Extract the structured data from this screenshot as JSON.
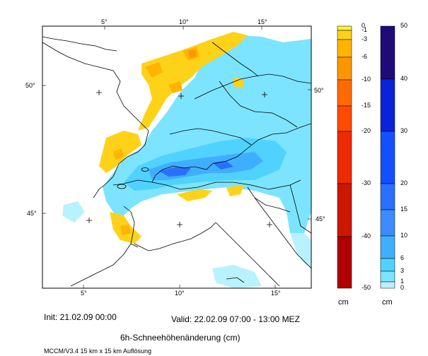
{
  "map": {
    "top_lon_labels": [
      "5°",
      "10°",
      "15°"
    ],
    "bottom_lon_labels": [
      "5°",
      "10°",
      "15°"
    ],
    "left_lat_labels": [
      "50°",
      "45°"
    ],
    "right_lat_labels": [
      "50°",
      "45°"
    ]
  },
  "negative_scale": {
    "labels": [
      "0",
      "-1",
      "-3",
      "-6",
      "-10",
      "-15",
      "-20",
      "-30",
      "-40",
      "-50"
    ],
    "colors": [
      "#ffee44",
      "#ffd21a",
      "#ffb400",
      "#ff9600",
      "#ff6a00",
      "#ff4a00",
      "#ee2a00",
      "#cc1800",
      "#b00000"
    ],
    "unit": "cm"
  },
  "positive_scale": {
    "labels": [
      "50",
      "40",
      "30",
      "20",
      "15",
      "10",
      "6",
      "3",
      "1",
      "0"
    ],
    "colors": [
      "#1e0a78",
      "#0a22d8",
      "#1250ff",
      "#2a70ff",
      "#3c8cff",
      "#40aeff",
      "#50d2ff",
      "#7ce4ff",
      "#b8f2ff"
    ],
    "unit": "cm"
  },
  "footer": {
    "init": "Init: 21.02.09 00:00",
    "valid": "Valid: 22.02.09 07:00 - 13:00 MEZ",
    "title": "6h-Schneehöhenänderung (cm)",
    "model": "MCCM/V3.4 15 km x 15 km Auflösung"
  }
}
